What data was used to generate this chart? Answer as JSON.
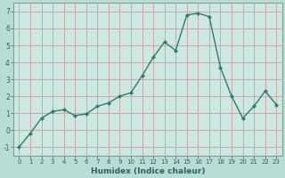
{
  "x": [
    0,
    1,
    2,
    3,
    4,
    5,
    6,
    7,
    8,
    9,
    10,
    11,
    12,
    13,
    14,
    15,
    16,
    17,
    18,
    19,
    20,
    21,
    22,
    23
  ],
  "y": [
    -1.0,
    -0.2,
    0.7,
    1.1,
    1.2,
    0.85,
    0.95,
    1.4,
    1.6,
    2.0,
    2.2,
    3.2,
    4.3,
    5.2,
    4.7,
    6.8,
    6.9,
    6.7,
    3.7,
    2.0,
    0.7,
    1.4,
    2.3,
    1.5
  ],
  "line_color": "#2e7d6e",
  "marker": "D",
  "marker_size": 2,
  "xlabel": "Humidex (Indice chaleur)",
  "bg_color": "#b8ddd5",
  "plot_bg_color": "#cce8e0",
  "grid_color": "#c8a0a0",
  "tick_color": "#2e6060",
  "label_color": "#2e6060",
  "spine_color": "#8a9a9a",
  "ylim": [
    -1.5,
    7.5
  ],
  "xlim": [
    -0.5,
    23.5
  ],
  "yticks": [
    -1,
    0,
    1,
    2,
    3,
    4,
    5,
    6,
    7
  ],
  "xticks": [
    0,
    1,
    2,
    3,
    4,
    5,
    6,
    7,
    8,
    9,
    10,
    11,
    12,
    13,
    14,
    15,
    16,
    17,
    18,
    19,
    20,
    21,
    22,
    23
  ]
}
